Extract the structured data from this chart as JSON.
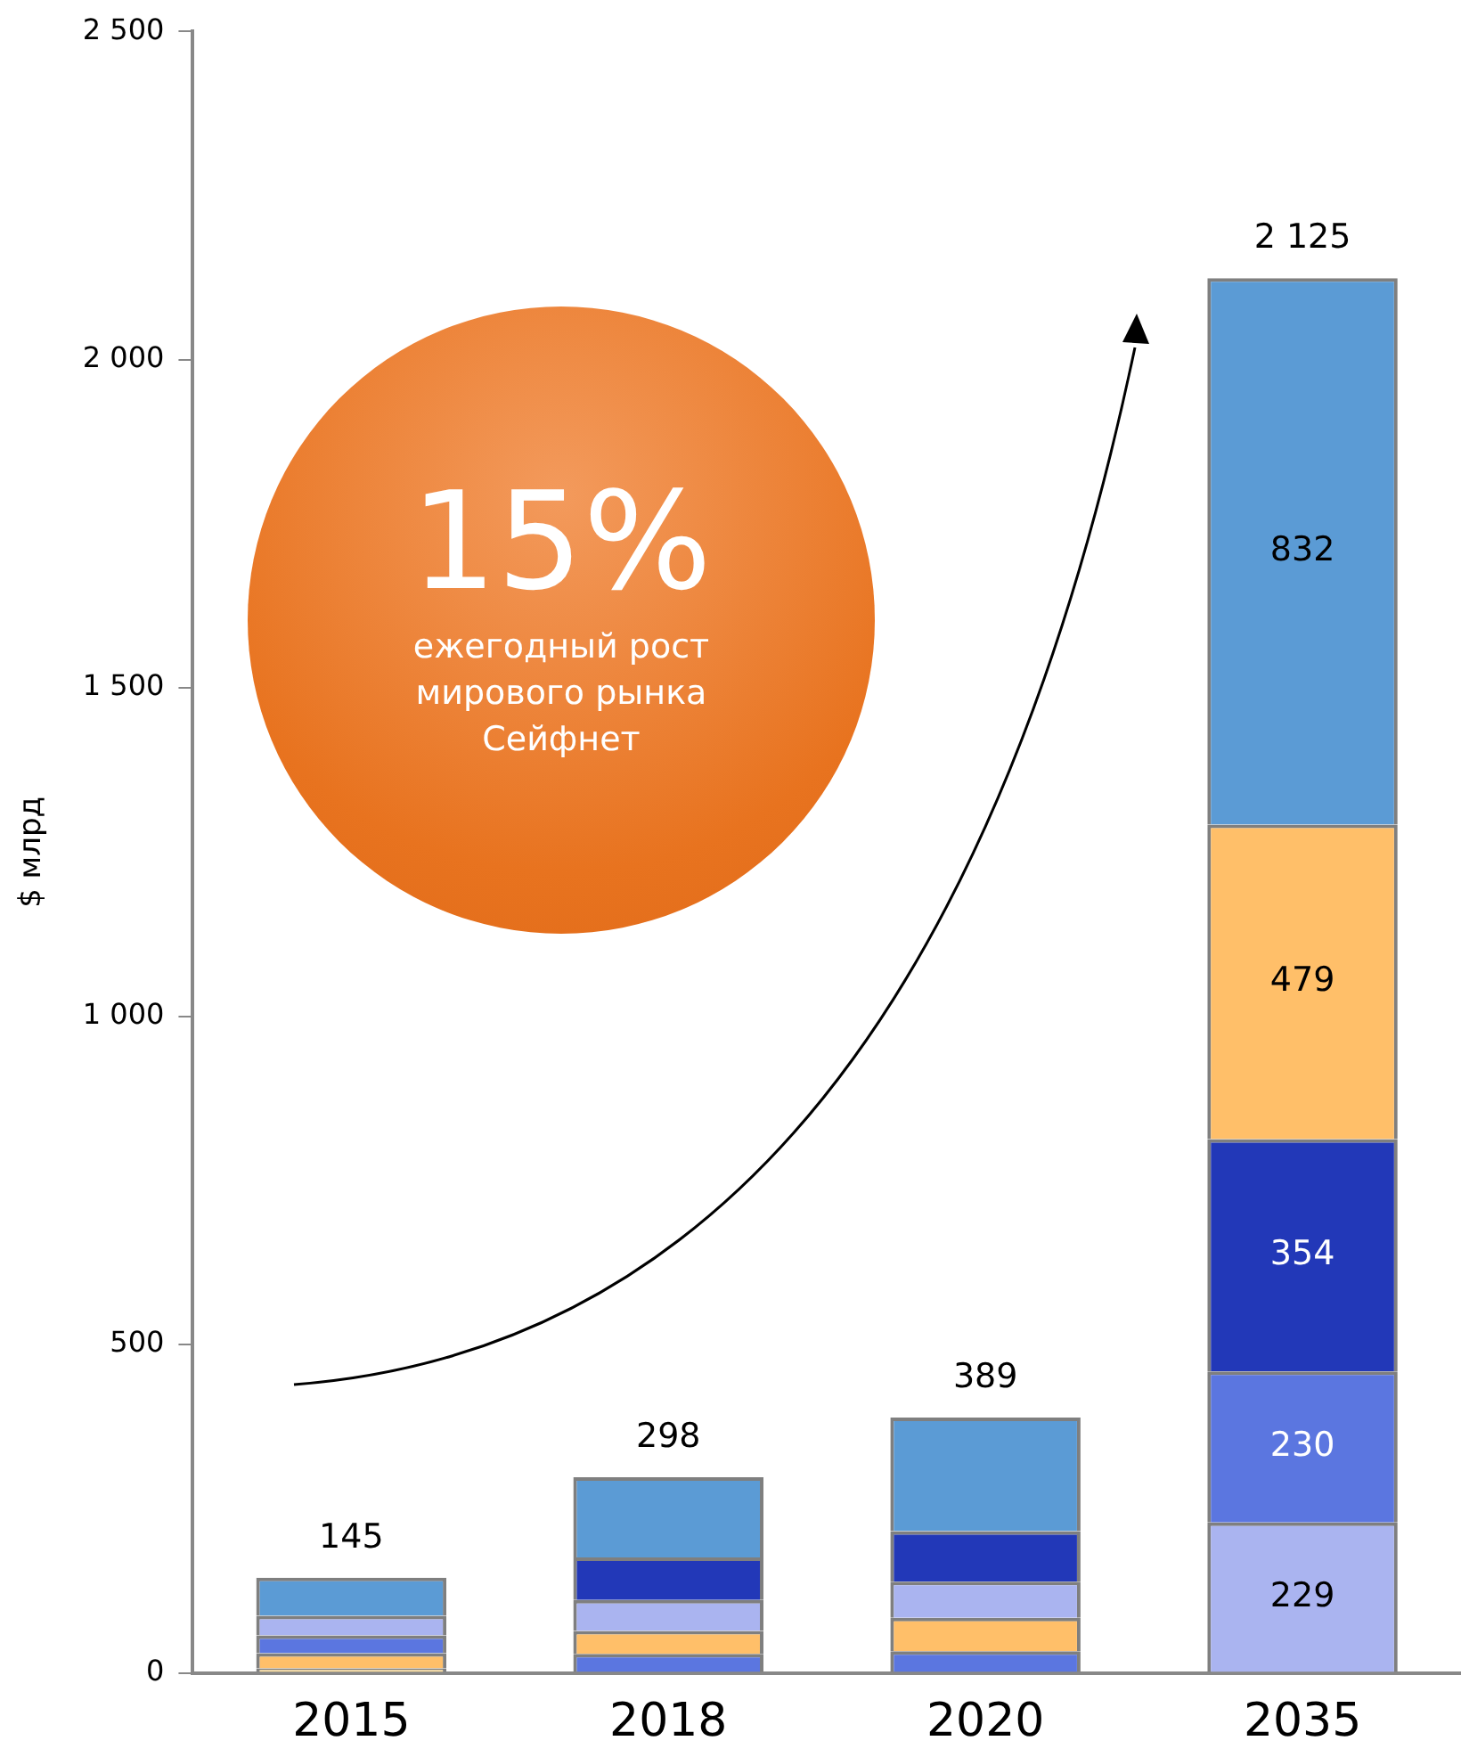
{
  "chart_data": {
    "type": "bar",
    "stacked": true,
    "ylabel": "$ млрд",
    "categories": [
      "2015",
      "2018",
      "2020",
      "2035"
    ],
    "series": [
      {
        "colors": [
          "#ffe0a0",
          "#5b76e0",
          "#5b76e0",
          "#aab4f0"
        ],
        "values": [
          7,
          29,
          33,
          229
        ],
        "value_labels": [
          null,
          null,
          null,
          "229"
        ]
      },
      {
        "colors": [
          "#ffbf69",
          "#ffbf69",
          "#ffbf69",
          "#5b76e0"
        ],
        "values": [
          23,
          35,
          51,
          230
        ],
        "value_labels": [
          null,
          null,
          null,
          "230"
        ]
      },
      {
        "colors": [
          "#5b76e0",
          "#aab4f0",
          "#aab4f0",
          "#2238b8"
        ],
        "values": [
          27,
          47,
          55,
          354
        ],
        "value_labels": [
          null,
          null,
          null,
          "354"
        ]
      },
      {
        "colors": [
          "#aab4f0",
          "#2238b8",
          "#2238b8",
          "#ffbf69"
        ],
        "values": [
          30,
          65,
          77,
          479
        ],
        "value_labels": [
          null,
          null,
          null,
          "479"
        ]
      },
      {
        "colors": [
          "#5b9bd5",
          "#5b9bd5",
          "#5b9bd5",
          "#5b9bd5"
        ],
        "values": [
          58,
          122,
          173,
          832
        ],
        "value_labels": [
          null,
          null,
          null,
          "832"
        ]
      }
    ],
    "totals": [
      "145",
      "298",
      "389",
      "2 125"
    ],
    "ylim": [
      0,
      2500
    ],
    "yticks": [
      {
        "value": 0,
        "label": "0"
      },
      {
        "value": 500,
        "label": "500"
      },
      {
        "value": 1000,
        "label": "1 000"
      },
      {
        "value": 1500,
        "label": "1 500"
      },
      {
        "value": 2000,
        "label": "2 000"
      },
      {
        "value": 2500,
        "label": "2 500"
      }
    ],
    "grid": false,
    "legend": false,
    "annotations": [
      "15%",
      "ежегодный рост мирового рынка Сейфнет"
    ]
  }
}
